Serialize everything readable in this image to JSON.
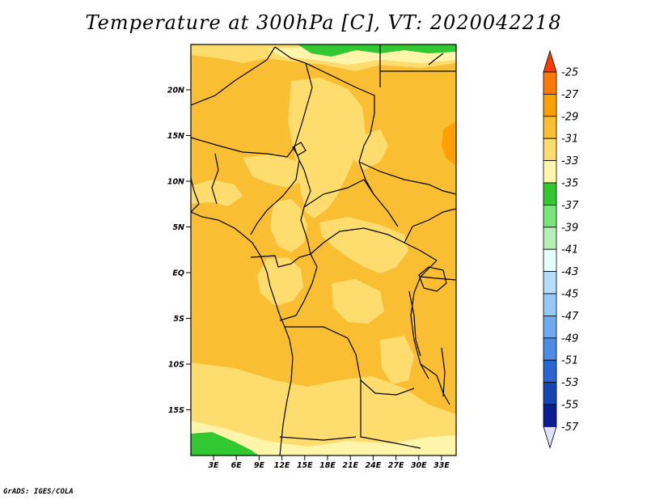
{
  "title": "Temperature at 300hPa [C], VT: 2020042218",
  "credit": "GrADS: IGES/COLA",
  "map": {
    "lon_range": [
      0,
      35
    ],
    "lat_range": [
      -19.5,
      24.5
    ],
    "lat_ticks": [
      "20N",
      "15N",
      "10N",
      "5N",
      "EQ",
      "5S",
      "10S",
      "15S"
    ],
    "lon_ticks": [
      "3E",
      "6E",
      "9E",
      "12E",
      "15E",
      "18E",
      "21E",
      "24E",
      "27E",
      "30E",
      "33E"
    ],
    "field": "Temperature at 300hPa",
    "units": "C"
  },
  "colorbar": {
    "labels": [
      "-25",
      "-27",
      "-29",
      "-31",
      "-33",
      "-35",
      "-37",
      "-39",
      "-41",
      "-43",
      "-45",
      "-47",
      "-49",
      "-51",
      "-53",
      "-55",
      "-57"
    ],
    "colors": [
      "#ff3c00",
      "#ff7800",
      "#ffa000",
      "#fabe32",
      "#fedc6e",
      "#fff5aa",
      "#32c832",
      "#78e678",
      "#b4f0b4",
      "#e6ffff",
      "#b4dcff",
      "#96c8fa",
      "#6eaaf0",
      "#4b8ce6",
      "#2864d2",
      "#1446b4",
      "#0a1e96",
      "#000064"
    ],
    "top_color": "#ff3c00",
    "bottom_color": "#e1e1ff"
  }
}
